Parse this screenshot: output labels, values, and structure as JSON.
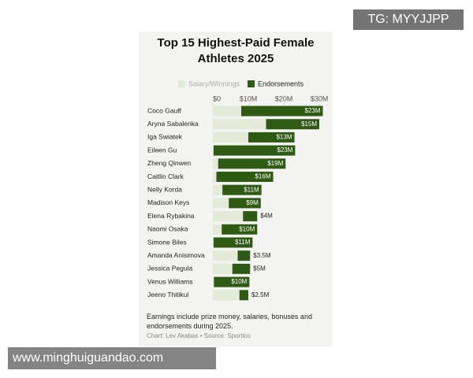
{
  "chart_data": {
    "type": "stacked-barh",
    "title": "Top 15 Highest-Paid Female Athletes 2025",
    "categories": [
      "Coco Gauff",
      "Aryna Sabalenka",
      "Iga Swiatek",
      "Eileen Gu",
      "Zheng Qinwen",
      "Caitlin Clark",
      "Nelly Korda",
      "Madison Keys",
      "Elena Rybakina",
      "Naomi Osaka",
      "Simone Biles",
      "Amanda Anisimova",
      "Jessica Pegula",
      "Venus Williams",
      "Jeeno Thitikul"
    ],
    "series": [
      {
        "name": "Salary/Winnings",
        "color": "#e4ead8",
        "values": [
          8,
          15,
          10,
          0.2,
          1.5,
          1,
          2.7,
          4.5,
          8.5,
          2.5,
          0.2,
          7,
          5.5,
          0.3,
          7.5
        ]
      },
      {
        "name": "Endorsements",
        "color": "#2e5a14",
        "values": [
          23,
          15,
          13,
          23,
          19,
          16,
          11,
          9,
          4,
          10,
          11,
          3.5,
          5,
          10,
          2.5
        ],
        "value_labels": [
          "$23M",
          "$15M",
          "$13M",
          "$23M",
          "$19M",
          "$16M",
          "$11M",
          "$9M",
          "$4M",
          "$10M",
          "$11M",
          "$3.5M",
          "$5M",
          "$10M",
          "$2.5M"
        ]
      }
    ],
    "xlim": [
      0,
      30
    ],
    "xticks": [
      {
        "value": 0,
        "label": "$0"
      },
      {
        "value": 10,
        "label": "$10M"
      },
      {
        "value": 20,
        "label": "$20M"
      },
      {
        "value": 30,
        "label": "$30M"
      }
    ],
    "note": "Earnings include prize money, salaries, bonuses and endorsements during 2025.",
    "source": "Chart: Lev Akabas • Source: Sportico"
  },
  "watermarks": [
    "TG: MYYJJPP",
    "www.minghuiguandao.com"
  ]
}
